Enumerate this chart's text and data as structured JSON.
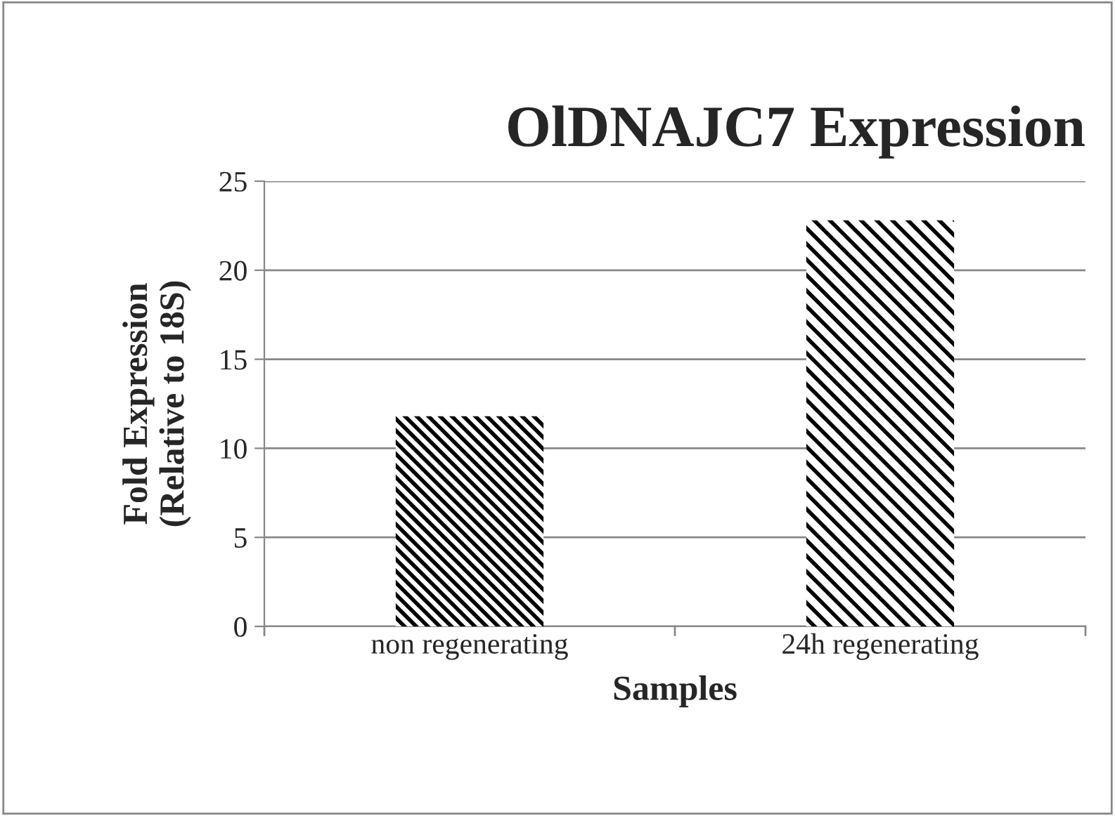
{
  "chart_data": {
    "type": "bar",
    "title": "OlDNAJC7 Expression",
    "xlabel": "Samples",
    "ylabel": "Fold Expression\n(Relative to 18S)",
    "categories": [
      "non regenerating",
      "24h regenerating"
    ],
    "values": [
      11.8,
      22.8
    ],
    "colors": [
      "#000000",
      "#000000"
    ],
    "ylim": [
      0,
      25
    ],
    "yticks": [
      0,
      5,
      10,
      15,
      20,
      25
    ],
    "grid": "y",
    "legend": false
  }
}
